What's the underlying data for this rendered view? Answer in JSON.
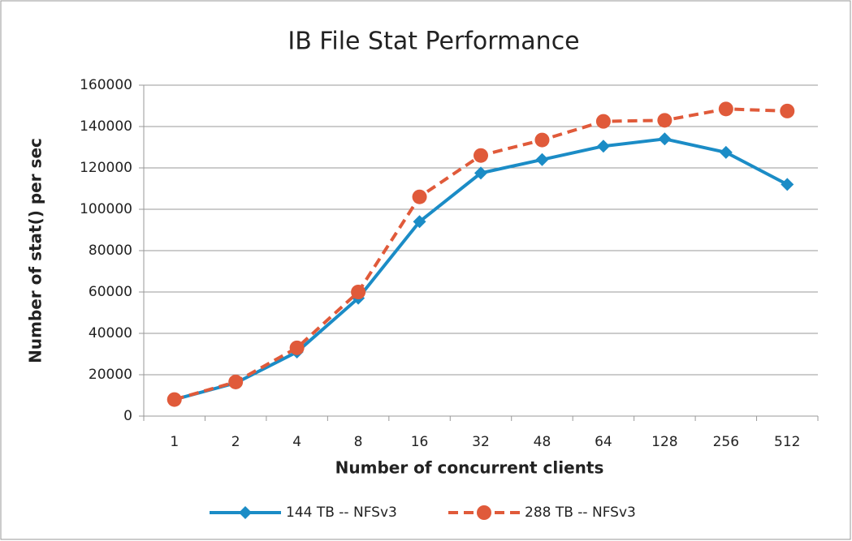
{
  "chart_data": {
    "type": "line",
    "title": "IB File Stat Performance",
    "x_label": "Number of concurrent clients",
    "y_label": "Number of stat() per sec",
    "categories": [
      "1",
      "2",
      "4",
      "8",
      "16",
      "32",
      "48",
      "64",
      "128",
      "256",
      "512"
    ],
    "series": [
      {
        "name": "144 TB -- NFSv3",
        "color": "#1b8cc6",
        "dashed": false,
        "marker": "diamond",
        "values": [
          8000,
          16000,
          31000,
          57000,
          94000,
          117500,
          124000,
          130500,
          134000,
          127500,
          112000
        ]
      },
      {
        "name": "288 TB -- NFSv3",
        "color": "#e05a3a",
        "dashed": true,
        "marker": "circle",
        "values": [
          8000,
          16500,
          33000,
          60000,
          106000,
          126000,
          133500,
          142500,
          143000,
          148500,
          147500
        ]
      }
    ],
    "ylim": [
      0,
      160000
    ],
    "yticks": [
      0,
      20000,
      40000,
      60000,
      80000,
      100000,
      120000,
      140000,
      160000
    ],
    "grid": true,
    "legend": "bottom"
  }
}
